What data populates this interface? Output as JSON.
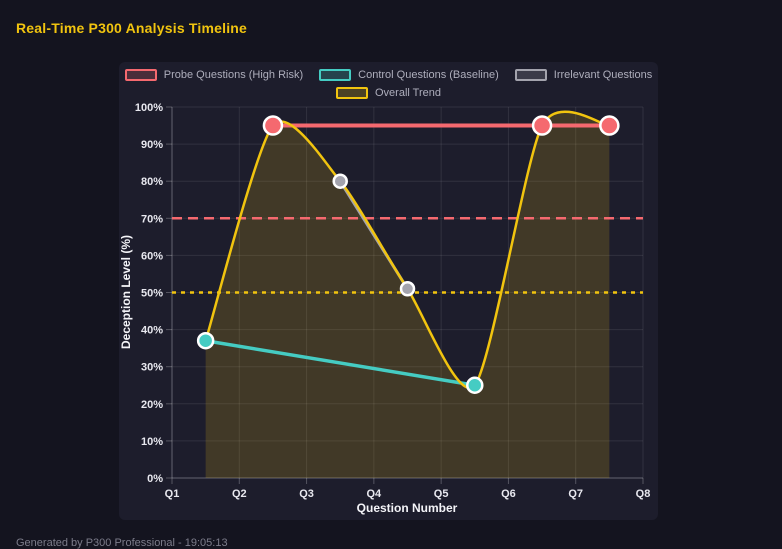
{
  "page": {
    "title": "Real-Time P300 Analysis Timeline",
    "footer": "Generated by P300 Professional - 19:05:13"
  },
  "theme": {
    "page_bg": "#14141f",
    "panel_bg": "#1d1d2c",
    "title_color": "#f1c40f",
    "legend_text_color": "#aeaebc",
    "tick_label_color": "#e8e8ef",
    "axis_title_color": "#f4f4f8",
    "footer_color": "#7c7c8a",
    "point_border_color": "#ffffff"
  },
  "chart_data": {
    "type": "line",
    "title": "Real-Time P300 Analysis Timeline",
    "xlabel": "Question Number",
    "ylabel": "Deception Level (%)",
    "x_tick_labels": [
      "Q1",
      "Q2",
      "Q3",
      "Q4",
      "Q5",
      "Q6",
      "Q7",
      "Q8"
    ],
    "xlim": [
      1,
      8
    ],
    "ylim": [
      0,
      100
    ],
    "y_tick_values": [
      0,
      10,
      20,
      30,
      40,
      50,
      60,
      70,
      80,
      90,
      100
    ],
    "y_tick_labels": [
      "0%",
      "10%",
      "20%",
      "30%",
      "40%",
      "50%",
      "60%",
      "70%",
      "80%",
      "90%",
      "100%"
    ],
    "grid": true,
    "legend_position": "top",
    "series": [
      {
        "name": "Probe Questions (High Risk)",
        "color": "#f5696f",
        "x": [
          2.5,
          6.5,
          7.5
        ],
        "y": [
          95,
          95,
          95
        ],
        "line_width": 4,
        "point_radius": 9,
        "smooth": false,
        "fill": false
      },
      {
        "name": "Control Questions (Baseline)",
        "color": "#45ccc3",
        "x": [
          1.5,
          5.5
        ],
        "y": [
          37,
          25
        ],
        "line_width": 3.5,
        "point_radius": 7.5,
        "smooth": false,
        "fill": false
      },
      {
        "name": "Irrelevant Questions",
        "color": "#a3a3ad",
        "x": [
          3.5,
          4.5
        ],
        "y": [
          80,
          51
        ],
        "line_width": 3,
        "point_radius": 6.5,
        "smooth": false,
        "fill": false
      },
      {
        "name": "Overall Trend",
        "color": "#f1c40f",
        "x": [
          1.5,
          2.5,
          3.5,
          4.5,
          5.5,
          6.5,
          7.5
        ],
        "y": [
          37,
          95,
          80,
          51,
          25,
          95,
          95
        ],
        "line_width": 2.5,
        "point_radius": 0,
        "smooth": true,
        "fill": true,
        "fill_opacity": 0.17
      }
    ],
    "reference_lines": [
      {
        "y": 70,
        "color": "#f5696f",
        "dash": [
          10,
          6
        ],
        "width": 2.5
      },
      {
        "y": 50,
        "color": "#f1c40f",
        "dash": [
          4,
          5
        ],
        "width": 2.5
      }
    ]
  }
}
